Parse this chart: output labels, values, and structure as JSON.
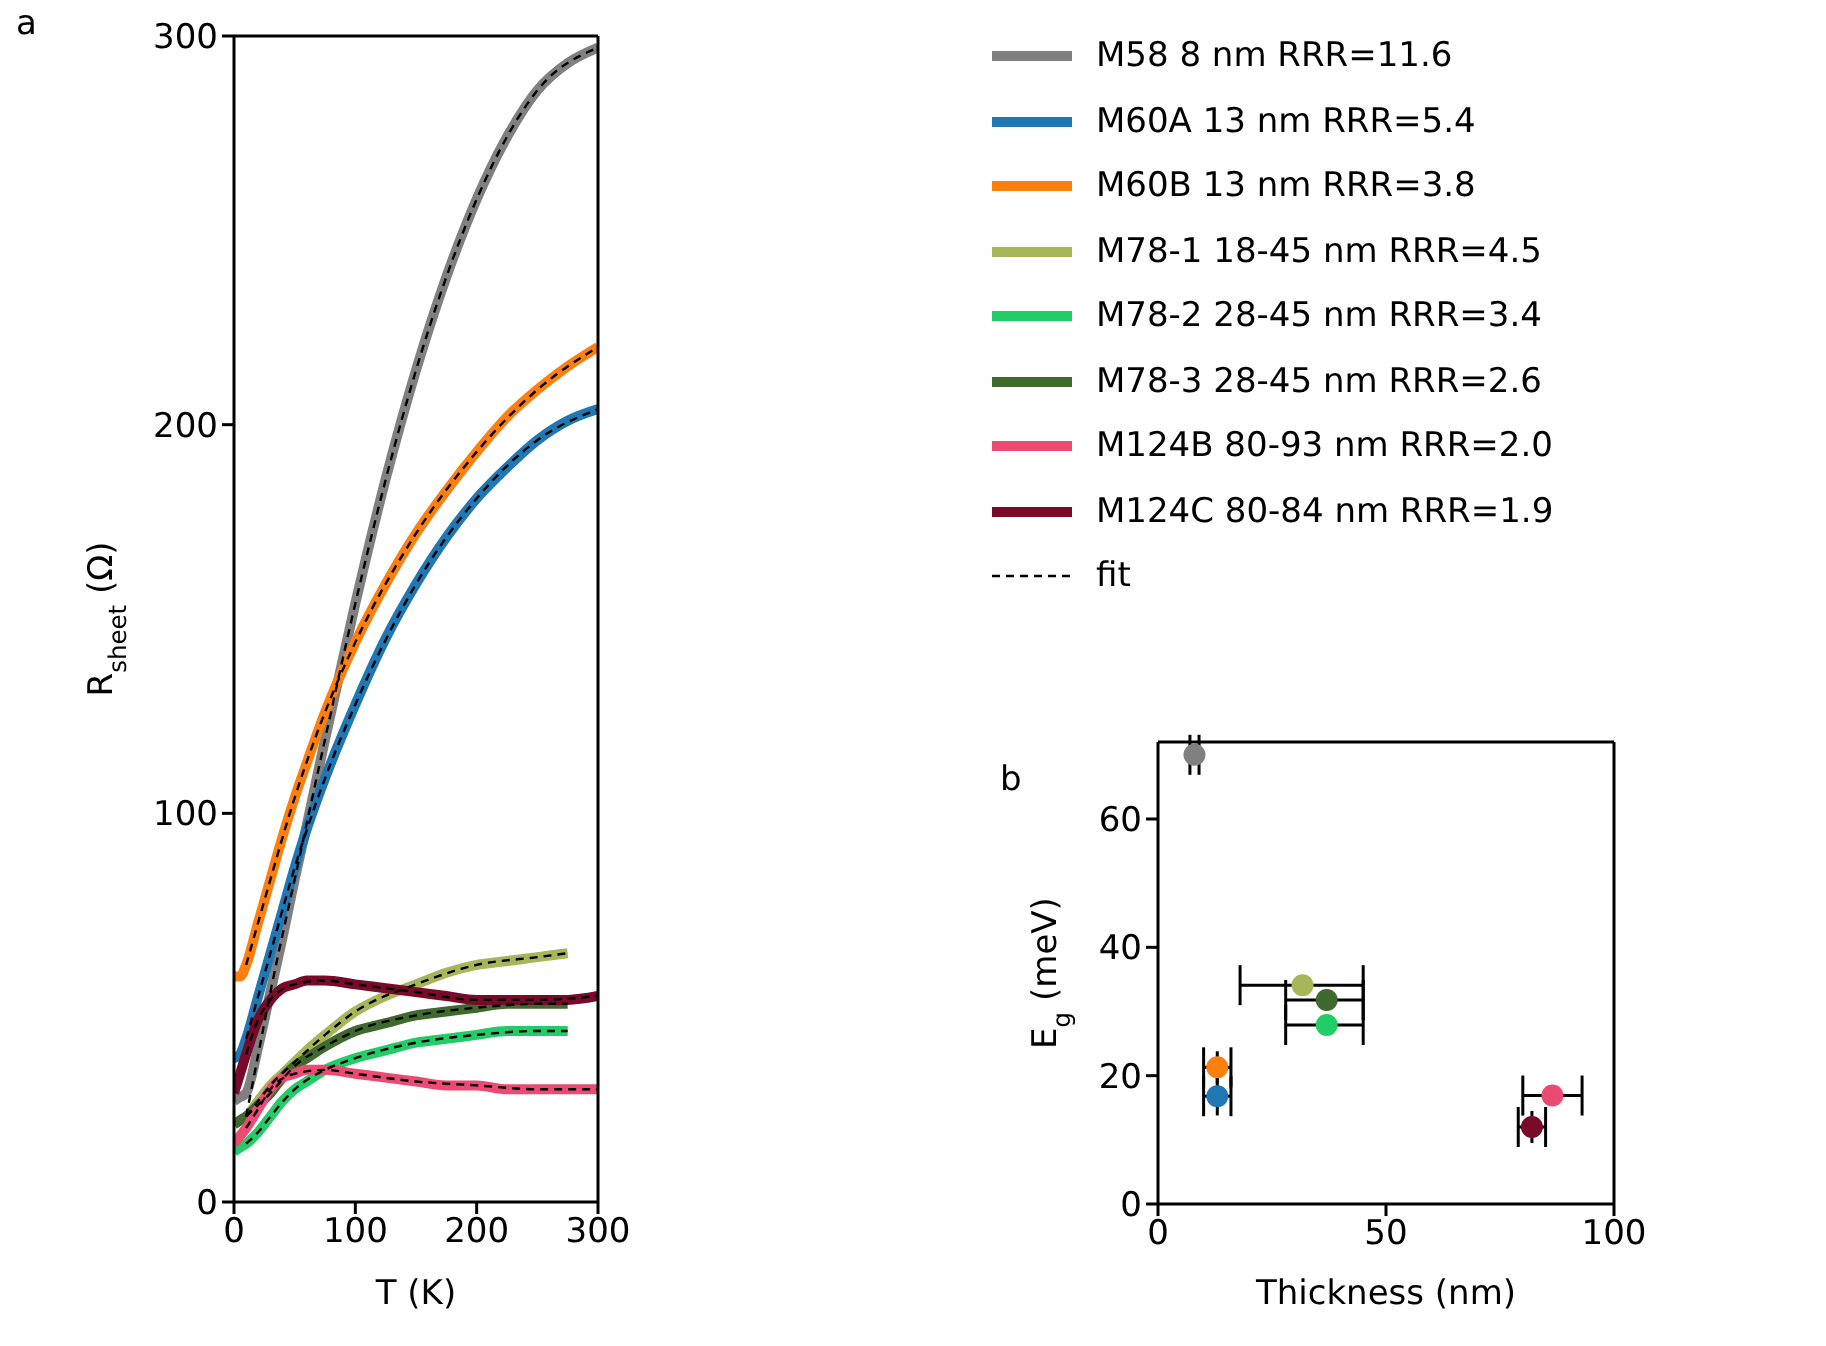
{
  "chart_data": [
    {
      "type": "line",
      "title": "a",
      "xlabel": "T (K)",
      "ylabel": "R$_{sheet}$ (Ω)",
      "x": [
        0,
        5,
        10,
        20,
        30,
        40,
        50,
        60,
        75,
        100,
        125,
        150,
        175,
        200,
        225,
        250,
        275,
        300
      ],
      "xlim": [
        0,
        300
      ],
      "xticks": [
        0,
        100,
        200,
        300
      ],
      "ylim": [
        0,
        300
      ],
      "yticks": [
        0,
        100,
        200,
        300
      ],
      "legend": "top right",
      "marker": "none",
      "line_style": "solid",
      "series": [
        {
          "name": "M58 8 nm RRR=11.6",
          "color": "#808080",
          "values": [
            26,
            27,
            28,
            40,
            54,
            68,
            83,
            97,
            119,
            154,
            186,
            214,
            238,
            258,
            274,
            286,
            293,
            297
          ]
        },
        {
          "name": "M60A 13 nm RRR=5.4",
          "color": "#1f77b4",
          "values": [
            37,
            38,
            42,
            53,
            64,
            75,
            86,
            96,
            109,
            128,
            145,
            159,
            171,
            181,
            189,
            196,
            201,
            204
          ]
        },
        {
          "name": "M60B 13 nm RRR=3.8",
          "color": "#ff7f0e",
          "values": [
            58,
            58,
            61,
            72,
            83,
            94,
            104,
            113,
            126,
            144,
            159,
            172,
            183,
            193,
            202,
            209,
            215,
            220
          ]
        },
        {
          "name": "M78-1 18-45 nm RRR=4.5",
          "color": "#a8b65a",
          "values": [
            20,
            21,
            22,
            26,
            30,
            33,
            36,
            39,
            43,
            49,
            53,
            56,
            59,
            61,
            62,
            63,
            64,
            null
          ]
        },
        {
          "name": "M78-2 28-45 nm RRR=3.4",
          "color": "#22cc66",
          "values": [
            13,
            14,
            15,
            18,
            22,
            26,
            29,
            31,
            34,
            37,
            39,
            41,
            42,
            43,
            44,
            44,
            44,
            null
          ]
        },
        {
          "name": "M78-3 28-45 nm RRR=2.6",
          "color": "#3f6a2e",
          "values": [
            20,
            21,
            22,
            25,
            28,
            32,
            35,
            37,
            40,
            44,
            46,
            48,
            49,
            50,
            51,
            51,
            51,
            null
          ]
        },
        {
          "name": "M124B 80-93 nm RRR=2.0",
          "color": "#ec4a72",
          "values": [
            15,
            17,
            19,
            24,
            29,
            32,
            33,
            34,
            34,
            33,
            32,
            31,
            30,
            30,
            29,
            29,
            29,
            29
          ]
        },
        {
          "name": "M124C 80-84 nm RRR=1.9",
          "color": "#7a0a2a",
          "values": [
            28,
            33,
            38,
            47,
            52,
            55,
            56,
            57,
            57,
            56,
            55,
            54,
            53,
            52,
            52,
            52,
            52,
            53
          ]
        },
        {
          "name": "fit",
          "type": "line",
          "line_style": "dashed",
          "color": "#000000",
          "x": [
            10,
            20,
            30,
            50,
            75,
            100,
            150,
            200,
            250,
            300
          ],
          "values": [
            22,
            38,
            54,
            83,
            119,
            154,
            214,
            258,
            286,
            297
          ]
        },
        {
          "type": "line",
          "line_style": "dashed",
          "color": "#000000",
          "x": [
            10,
            20,
            30,
            50,
            75,
            100,
            150,
            200,
            250,
            300
          ],
          "values": [
            42,
            53,
            64,
            86,
            109,
            128,
            159,
            181,
            196,
            204
          ]
        },
        {
          "type": "line",
          "line_style": "dashed",
          "color": "#000000",
          "x": [
            10,
            20,
            30,
            50,
            75,
            100,
            150,
            200,
            250,
            300
          ],
          "values": [
            61,
            72,
            83,
            104,
            126,
            144,
            172,
            193,
            209,
            220
          ]
        },
        {
          "type": "line",
          "line_style": "dashed",
          "color": "#000000",
          "x": [
            10,
            20,
            30,
            50,
            75,
            100,
            150,
            200,
            250,
            275
          ],
          "values": [
            22,
            26,
            30,
            36,
            43,
            49,
            56,
            61,
            63,
            64
          ]
        },
        {
          "type": "line",
          "line_style": "dashed",
          "color": "#000000",
          "x": [
            10,
            20,
            30,
            50,
            75,
            100,
            150,
            200,
            250,
            275
          ],
          "values": [
            15,
            18,
            22,
            29,
            34,
            37,
            41,
            43,
            44,
            44
          ]
        },
        {
          "type": "line",
          "line_style": "dashed",
          "color": "#000000",
          "x": [
            10,
            20,
            30,
            50,
            75,
            100,
            150,
            200,
            250,
            275
          ],
          "values": [
            22,
            25,
            28,
            35,
            40,
            44,
            48,
            50,
            51,
            51
          ]
        },
        {
          "type": "line",
          "line_style": "dashed",
          "color": "#000000",
          "x": [
            10,
            20,
            30,
            50,
            75,
            100,
            150,
            200,
            250,
            300
          ],
          "values": [
            19,
            24,
            29,
            33,
            34,
            33,
            31,
            30,
            29,
            29
          ]
        },
        {
          "type": "line",
          "line_style": "dashed",
          "color": "#000000",
          "x": [
            10,
            20,
            30,
            50,
            75,
            100,
            150,
            200,
            250,
            300
          ],
          "values": [
            38,
            47,
            52,
            56,
            57,
            56,
            54,
            52,
            52,
            53
          ]
        }
      ]
    },
    {
      "type": "scatter",
      "title": "b",
      "xlabel": "Thickness (nm)",
      "ylabel": "E$_{g}$ (meV)",
      "xlim": [
        0,
        100
      ],
      "xticks": [
        0,
        50,
        100
      ],
      "ylim": [
        0,
        72
      ],
      "yticks": [
        0,
        20,
        40,
        60
      ],
      "marker": "circle",
      "series": [
        {
          "color": "#808080",
          "x": [
            8
          ],
          "values": [
            70
          ],
          "errors": [
            1
          ],
          "xerrors": [
            1
          ]
        },
        {
          "color": "#1f77b4",
          "x": [
            13
          ],
          "values": [
            16.8
          ],
          "errors": [
            3
          ],
          "xerrors": [
            3
          ]
        },
        {
          "color": "#ff7f0e",
          "x": [
            13
          ],
          "values": [
            21.3
          ],
          "errors": [
            2.5
          ],
          "xerrors": [
            3
          ]
        },
        {
          "color": "#a8b65a",
          "x": [
            31.7
          ],
          "values": [
            34.1
          ],
          "xerrors": [
            [
              18,
              45
            ]
          ]
        },
        {
          "color": "#22cc66",
          "x": [
            37
          ],
          "values": [
            27.9
          ],
          "xerrors": [
            [
              28,
              45
            ]
          ]
        },
        {
          "color": "#3f6a2e",
          "x": [
            37
          ],
          "values": [
            31.8
          ],
          "xerrors": [
            [
              28,
              45
            ]
          ]
        },
        {
          "color": "#ec4a72",
          "x": [
            86.5
          ],
          "values": [
            16.9
          ],
          "xerrors": [
            [
              80,
              93
            ]
          ]
        },
        {
          "color": "#7a0a2a",
          "x": [
            82
          ],
          "values": [
            12
          ],
          "errors": [
            2.5
          ],
          "xerrors": [
            [
              79,
              85
            ]
          ]
        }
      ]
    }
  ]
}
